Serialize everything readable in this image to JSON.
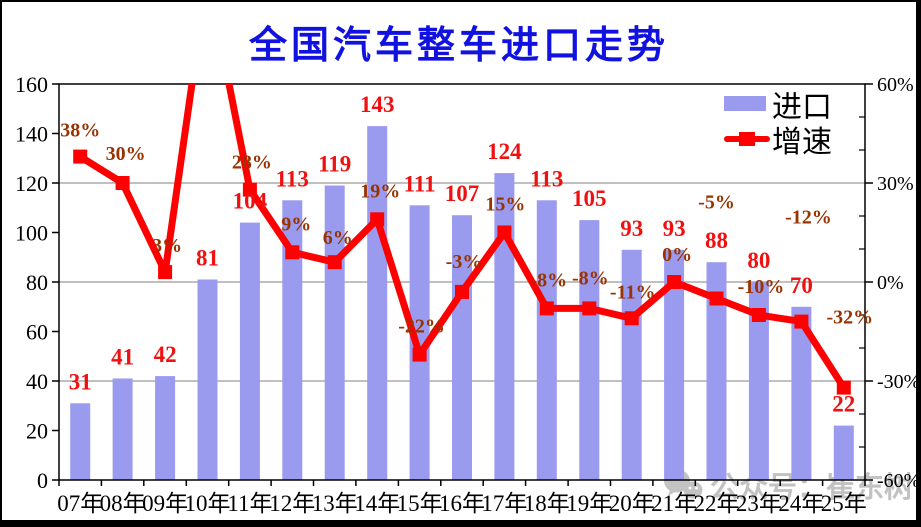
{
  "title": {
    "text": "全国汽车整车进口走势",
    "color": "#1212e0"
  },
  "watermark": {
    "text": "公众号：崔东树",
    "icon": "wechat-icon",
    "color": "#b3b3b3"
  },
  "legend": {
    "items": [
      {
        "label": "进口",
        "type": "bar"
      },
      {
        "label": "增速",
        "type": "line"
      }
    ]
  },
  "colors": {
    "bar_fill": "#9a9aef",
    "line": "#ff0000",
    "bar_label": "#f01010",
    "growth_label": "#993300",
    "gridline": "#808080",
    "axis": "#000000"
  },
  "chart_data": {
    "type": "bar+line combo",
    "title": "全国汽车整车进口走势",
    "categories": [
      "07年",
      "08年",
      "09年",
      "10年",
      "11年",
      "12年",
      "13年",
      "14年",
      "15年",
      "16年",
      "17年",
      "18年",
      "19年",
      "20年",
      "21年",
      "22年",
      "23年",
      "24年",
      "25年"
    ],
    "series": [
      {
        "name": "进口",
        "type": "bar",
        "axis": "left",
        "values": [
          31,
          41,
          42,
          81,
          104,
          113,
          119,
          143,
          111,
          107,
          124,
          113,
          105,
          93,
          93,
          88,
          80,
          70,
          22
        ],
        "labels": [
          "31",
          "41",
          "42",
          "81",
          "104",
          "113",
          "119",
          "143",
          "111",
          "107",
          "124",
          "113",
          "105",
          "93",
          "93",
          "88",
          "80",
          "70",
          "22"
        ]
      },
      {
        "name": "增速",
        "type": "line",
        "axis": "right",
        "values_pct": [
          38,
          30,
          3,
          93,
          28,
          9,
          6,
          19,
          -22,
          -3,
          15,
          -8,
          -8,
          -11,
          0,
          -5,
          -10,
          -12,
          -32
        ],
        "labels": [
          "38%",
          "30%",
          "3%",
          "",
          "28%",
          "9%",
          "6%",
          "19%",
          "-22%",
          "-3%",
          "15%",
          "-8%",
          "-8%",
          "-11%",
          "0%",
          "-5%",
          "-10%",
          "-12%",
          "-32%"
        ],
        "label_offsets": [
          [
            0,
            -27
          ],
          [
            3,
            -30
          ],
          [
            2,
            -27
          ],
          [
            0,
            0
          ],
          [
            2,
            -28
          ],
          [
            4,
            -29
          ],
          [
            3,
            -25
          ],
          [
            3,
            -29
          ],
          [
            2,
            -29
          ],
          [
            2,
            -31
          ],
          [
            1,
            -29
          ],
          [
            2,
            -29
          ],
          [
            1,
            -31
          ],
          [
            1,
            -27
          ],
          [
            3,
            -28
          ],
          [
            0,
            -97
          ],
          [
            2,
            -29
          ],
          [
            7,
            -105
          ],
          [
            6,
            -71
          ]
        ],
        "offscale_note": "10年 point exceeds +60% right-axis maximum; line is clipped at the plot top border (no data label shown)"
      }
    ],
    "left_axis": {
      "min": 0,
      "max": 160,
      "step": 20,
      "tick_labels": [
        "0",
        "20",
        "40",
        "60",
        "80",
        "100",
        "120",
        "140",
        "160"
      ]
    },
    "right_axis": {
      "min": -60,
      "max": 60,
      "major_step": 30,
      "minor_step": 10,
      "tick_labels": [
        "60%",
        "30%",
        "0%",
        "-30%",
        "-60%"
      ]
    },
    "gridlines_left_values": [
      40,
      80,
      120
    ],
    "grid": "horizontal only",
    "legend_position": "top-right inside plot"
  }
}
